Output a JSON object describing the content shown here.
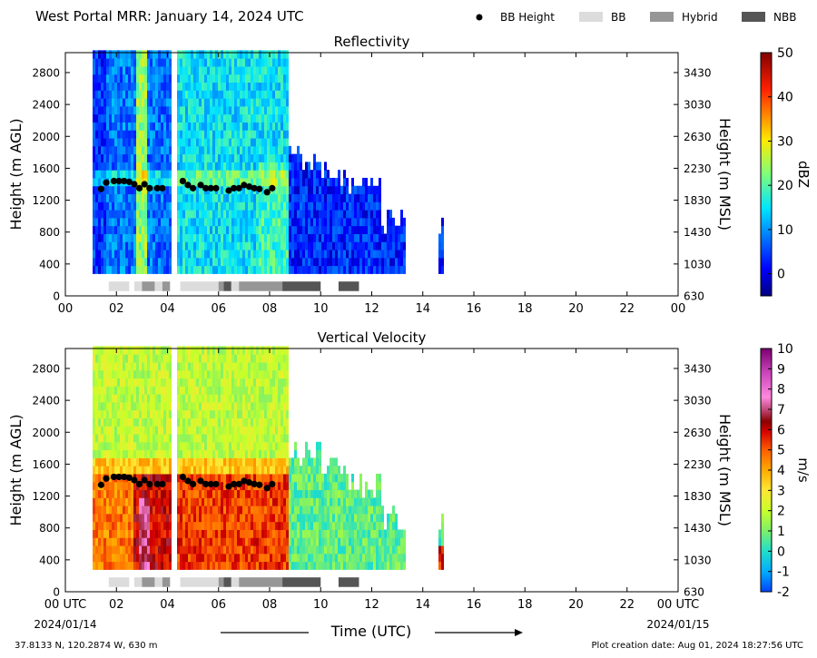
{
  "header": {
    "title": "West Portal MRR:  January 14, 2024 UTC",
    "legend": [
      {
        "label": "BB Height",
        "kind": "dot",
        "color": "#000000"
      },
      {
        "label": "BB",
        "kind": "box",
        "color": "#dcdcdc"
      },
      {
        "label": "Hybrid",
        "kind": "box",
        "color": "#969696"
      },
      {
        "label": "NBB",
        "kind": "box",
        "color": "#555555"
      }
    ]
  },
  "footer": {
    "coords": "37.8133 N, 120.2874 W, 630 m",
    "created": "Plot creation date: Aug 01, 2024 18:27:56 UTC",
    "xlabel": "Time (UTC)",
    "start_date": "2024/01/14",
    "end_date": "2024/01/15"
  },
  "chart_data": [
    {
      "type": "heatmap",
      "title": "Reflectivity",
      "ylabel": "Height (m AGL)",
      "y2label": "Height (m MSL)",
      "xlim": [
        0,
        24
      ],
      "ylim": [
        0,
        3050
      ],
      "xticks": [
        "00",
        "02",
        "04",
        "06",
        "08",
        "10",
        "12",
        "14",
        "16",
        "18",
        "20",
        "22",
        "00"
      ],
      "yticks": [
        0,
        400,
        800,
        1200,
        1600,
        2000,
        2400,
        2800
      ],
      "y2ticks": [
        630,
        1030,
        1430,
        1830,
        2230,
        2630,
        3030,
        3430
      ],
      "colorbar": {
        "label": "dBZ",
        "min": -5,
        "max": 50,
        "ticks": [
          0,
          10,
          20,
          30,
          40,
          50
        ],
        "cmap": "jet"
      },
      "bb_height": {
        "times": [
          1.4,
          1.6,
          1.9,
          2.1,
          2.3,
          2.5,
          2.7,
          2.9,
          3.1,
          3.3,
          3.6,
          3.8,
          4.6,
          4.8,
          5.0,
          5.3,
          5.5,
          5.7,
          5.9,
          6.4,
          6.6,
          6.8,
          7.0,
          7.2,
          7.4,
          7.6,
          7.9,
          8.1
        ],
        "heights": [
          1340,
          1420,
          1440,
          1440,
          1440,
          1430,
          1400,
          1350,
          1400,
          1350,
          1350,
          1350,
          1440,
          1390,
          1350,
          1390,
          1350,
          1350,
          1350,
          1320,
          1350,
          1350,
          1390,
          1370,
          1350,
          1340,
          1300,
          1350
        ]
      },
      "bb_type_segments": [
        {
          "start": 1.7,
          "end": 2.5,
          "type": "BB"
        },
        {
          "start": 2.7,
          "end": 3.0,
          "type": "BB"
        },
        {
          "start": 3.0,
          "end": 3.5,
          "type": "Hybrid"
        },
        {
          "start": 3.5,
          "end": 3.8,
          "type": "BB"
        },
        {
          "start": 3.8,
          "end": 4.1,
          "type": "Hybrid"
        },
        {
          "start": 4.5,
          "end": 6.0,
          "type": "BB"
        },
        {
          "start": 6.0,
          "end": 6.2,
          "type": "Hybrid"
        },
        {
          "start": 6.2,
          "end": 6.5,
          "type": "NBB"
        },
        {
          "start": 6.5,
          "end": 6.8,
          "type": "BB"
        },
        {
          "start": 6.8,
          "end": 8.0,
          "type": "Hybrid"
        },
        {
          "start": 8.0,
          "end": 8.5,
          "type": "Hybrid"
        },
        {
          "start": 8.5,
          "end": 10.0,
          "type": "NBB"
        },
        {
          "start": 10.7,
          "end": 11.5,
          "type": "NBB"
        }
      ]
    },
    {
      "type": "heatmap",
      "title": "Vertical Velocity",
      "ylabel": "Height (m AGL)",
      "y2label": "Height (m MSL)",
      "xlim": [
        0,
        24
      ],
      "ylim": [
        0,
        3050
      ],
      "xticks": [
        "00 UTC",
        "02",
        "04",
        "06",
        "08",
        "10",
        "12",
        "14",
        "16",
        "18",
        "20",
        "22",
        "00 UTC"
      ],
      "yticks": [
        0,
        400,
        800,
        1200,
        1600,
        2000,
        2400,
        2800
      ],
      "y2ticks": [
        630,
        1030,
        1430,
        1830,
        2230,
        2630,
        3030,
        3430
      ],
      "colorbar": {
        "label": "m/s",
        "min": -2,
        "max": 10,
        "ticks": [
          -2,
          -1,
          0,
          1,
          2,
          3,
          4,
          5,
          6,
          7,
          8,
          9,
          10
        ],
        "cmap": "velocity"
      },
      "bb_height": {
        "times": [
          1.4,
          1.6,
          1.9,
          2.1,
          2.3,
          2.5,
          2.7,
          2.9,
          3.1,
          3.3,
          3.6,
          3.8,
          4.6,
          4.8,
          5.0,
          5.3,
          5.5,
          5.7,
          5.9,
          6.4,
          6.6,
          6.8,
          7.0,
          7.2,
          7.4,
          7.6,
          7.9,
          8.1
        ],
        "heights": [
          1340,
          1420,
          1440,
          1440,
          1440,
          1430,
          1400,
          1350,
          1400,
          1350,
          1350,
          1350,
          1440,
          1390,
          1350,
          1390,
          1350,
          1350,
          1350,
          1320,
          1350,
          1350,
          1390,
          1370,
          1350,
          1340,
          1300,
          1350
        ]
      },
      "bb_type_segments": [
        {
          "start": 1.7,
          "end": 2.5,
          "type": "BB"
        },
        {
          "start": 2.7,
          "end": 3.0,
          "type": "BB"
        },
        {
          "start": 3.0,
          "end": 3.5,
          "type": "Hybrid"
        },
        {
          "start": 3.5,
          "end": 3.8,
          "type": "BB"
        },
        {
          "start": 3.8,
          "end": 4.1,
          "type": "Hybrid"
        },
        {
          "start": 4.5,
          "end": 6.0,
          "type": "BB"
        },
        {
          "start": 6.0,
          "end": 6.2,
          "type": "Hybrid"
        },
        {
          "start": 6.2,
          "end": 6.5,
          "type": "NBB"
        },
        {
          "start": 6.5,
          "end": 6.8,
          "type": "BB"
        },
        {
          "start": 6.8,
          "end": 8.0,
          "type": "Hybrid"
        },
        {
          "start": 8.0,
          "end": 8.5,
          "type": "Hybrid"
        },
        {
          "start": 8.5,
          "end": 10.0,
          "type": "NBB"
        },
        {
          "start": 10.7,
          "end": 11.5,
          "type": "NBB"
        }
      ]
    }
  ]
}
